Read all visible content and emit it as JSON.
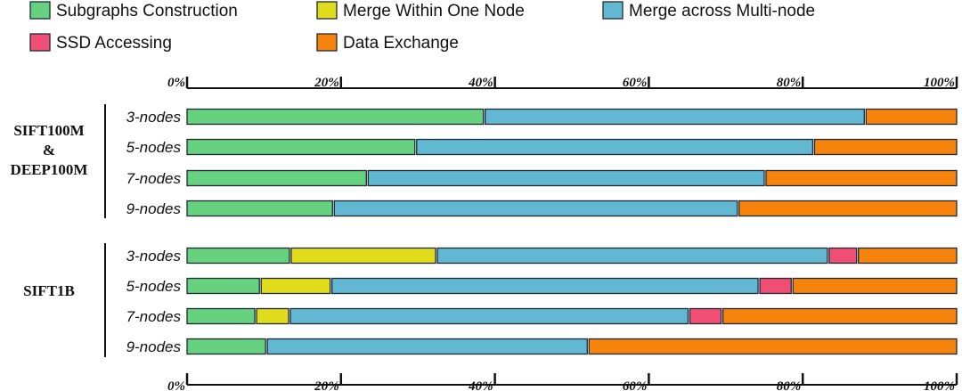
{
  "chart_data": {
    "type": "bar",
    "orientation": "horizontal",
    "stacked": true,
    "xlim": [
      0,
      100
    ],
    "tick_labels": [
      "0%",
      "20%",
      "40%",
      "60%",
      "80%",
      "100%"
    ],
    "legend": [
      {
        "key": "subgraphs",
        "label": "Subgraphs Construction",
        "color": "#66d17f"
      },
      {
        "key": "merge_within",
        "label": "Merge Within One Node",
        "color": "#e0dc1c"
      },
      {
        "key": "merge_across",
        "label": "Merge across Multi-node",
        "color": "#62b8d2"
      },
      {
        "key": "ssd",
        "label": "SSD Accessing",
        "color": "#f04e72"
      },
      {
        "key": "exchange",
        "label": "Data Exchange",
        "color": "#f6830c"
      }
    ],
    "groups": [
      {
        "label_lines": [
          "SIFT100M",
          "&",
          "DEEP100M"
        ],
        "rows": [
          {
            "label": "3-nodes",
            "values": {
              "subgraphs": 38.5,
              "merge_within": 0,
              "merge_across": 49.5,
              "ssd": 0,
              "exchange": 12
            }
          },
          {
            "label": "5-nodes",
            "values": {
              "subgraphs": 29.6,
              "merge_within": 0,
              "merge_across": 51.7,
              "ssd": 0,
              "exchange": 18.7
            }
          },
          {
            "label": "7-nodes",
            "values": {
              "subgraphs": 23.3,
              "merge_within": 0,
              "merge_across": 51.7,
              "ssd": 0,
              "exchange": 25
            }
          },
          {
            "label": "9-nodes",
            "values": {
              "subgraphs": 18.9,
              "merge_within": 0,
              "merge_across": 52.6,
              "ssd": 0,
              "exchange": 28.5
            }
          }
        ]
      },
      {
        "label_lines": [
          "SIFT1B"
        ],
        "rows": [
          {
            "label": "3-nodes",
            "values": {
              "subgraphs": 13.3,
              "merge_within": 19,
              "merge_across": 50.9,
              "ssd": 3.8,
              "exchange": 13
            }
          },
          {
            "label": "5-nodes",
            "values": {
              "subgraphs": 9.4,
              "merge_within": 9.2,
              "merge_across": 55.6,
              "ssd": 4.3,
              "exchange": 21.5
            }
          },
          {
            "label": "7-nodes",
            "values": {
              "subgraphs": 8.8,
              "merge_within": 4.4,
              "merge_across": 51.9,
              "ssd": 4.3,
              "exchange": 30.6
            }
          },
          {
            "label": "9-nodes",
            "values": {
              "subgraphs": 10.2,
              "merge_within": 0,
              "merge_across": 41.8,
              "ssd": 0,
              "exchange": 48
            }
          }
        ]
      }
    ]
  }
}
